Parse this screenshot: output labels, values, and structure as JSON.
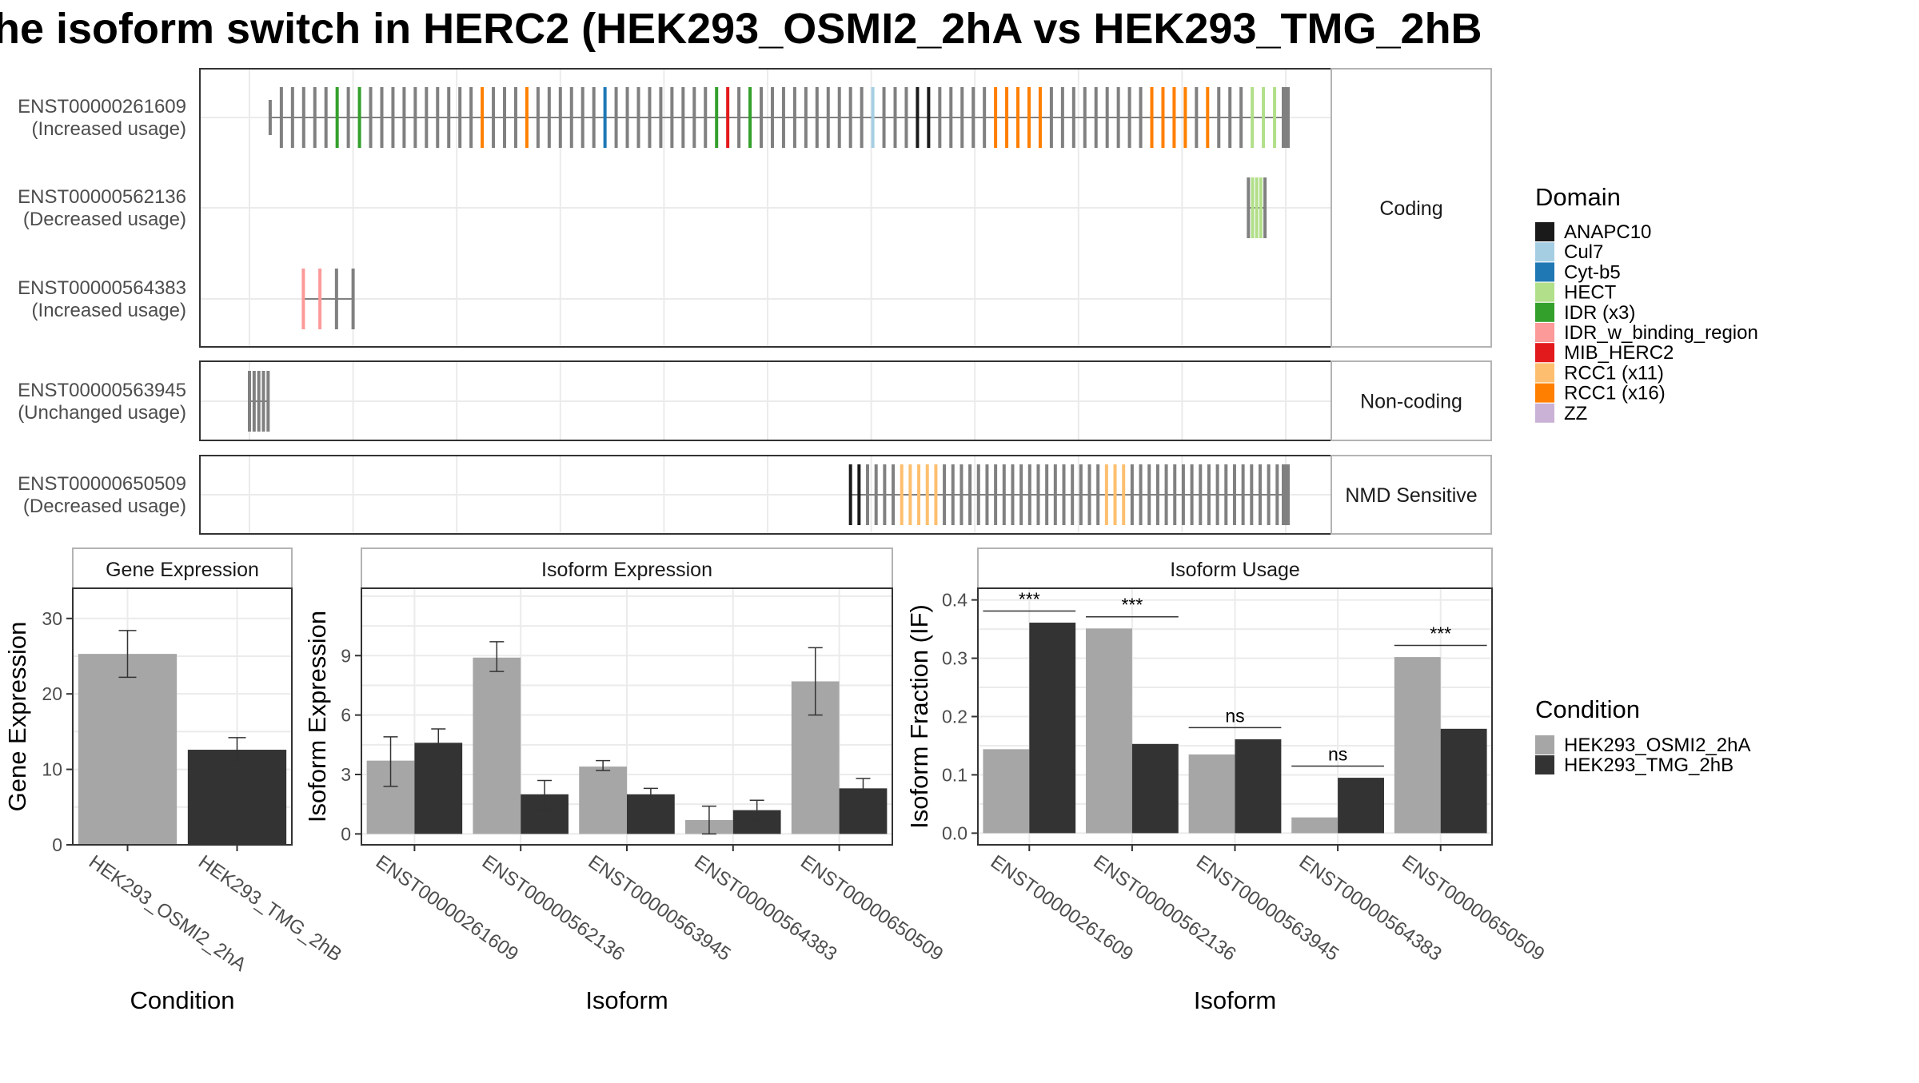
{
  "title": "he isoform switch in HERC2 (HEK293_OSMI2_2hA vs HEK293_TMG_2hB",
  "colors": {
    "exon": "#808080",
    "cond_a": "#a6a6a6",
    "cond_b": "#333333",
    "grid": "#ebebeb",
    "panel_border": "#333333",
    "strip_border": "#b3b3b3"
  },
  "transcript_panels": [
    {
      "category": "Coding",
      "tracks": [
        {
          "id": "ENST00000261609",
          "usage": "(Increased usage)",
          "exon_start": 2,
          "exon_end": 100,
          "thick_start": 4,
          "exon_count": 92,
          "domain_exons": [
            [
              6,
              "IDR (x3)"
            ],
            [
              8,
              "IDR (x3)"
            ],
            [
              19,
              "RCC1 (x16)"
            ],
            [
              23,
              "RCC1 (x16)"
            ],
            [
              30,
              "Cyt-b5"
            ],
            [
              40,
              "IDR (x3)"
            ],
            [
              41,
              "MIB_HERC2"
            ],
            [
              43,
              "IDR (x3)"
            ],
            [
              54,
              "Cul7"
            ],
            [
              58,
              "ANAPC10"
            ],
            [
              59,
              "ANAPC10"
            ],
            [
              65,
              "RCC1 (x16)"
            ],
            [
              66,
              "RCC1 (x16)"
            ],
            [
              67,
              "RCC1 (x16)"
            ],
            [
              68,
              "RCC1 (x16)"
            ],
            [
              69,
              "RCC1 (x16)"
            ],
            [
              79,
              "RCC1 (x16)"
            ],
            [
              80,
              "RCC1 (x16)"
            ],
            [
              81,
              "RCC1 (x16)"
            ],
            [
              82,
              "RCC1 (x16)"
            ],
            [
              84,
              "RCC1 (x16)"
            ],
            [
              88,
              "HECT"
            ],
            [
              89,
              "HECT"
            ],
            [
              90,
              "HECT"
            ]
          ]
        },
        {
          "id": "ENST00000562136",
          "usage": "(Decreased usage)",
          "exon_start": 96.4,
          "exon_end": 98,
          "thick_start": 96.4,
          "exon_count": 5,
          "domain_exons": [
            [
              1,
              "HECT"
            ],
            [
              2,
              "HECT"
            ],
            [
              3,
              "HECT"
            ]
          ]
        },
        {
          "id": "ENST00000564383",
          "usage": "(Increased usage)",
          "exon_start": 5.2,
          "exon_end": 10,
          "thick_start": 5.2,
          "exon_count": 4,
          "domain_exons": [
            [
              0,
              "IDR_w_binding_region"
            ],
            [
              1,
              "IDR_w_binding_region"
            ]
          ]
        }
      ]
    },
    {
      "category": "Non-coding",
      "tracks": [
        {
          "id": "ENST00000563945",
          "usage": "(Unchanged usage)",
          "exon_start": 0,
          "exon_end": 1.8,
          "thick_start": 0,
          "exon_count": 5,
          "domain_exons": []
        }
      ]
    },
    {
      "category": "NMD Sensitive",
      "tracks": [
        {
          "id": "ENST00000650509",
          "usage": "(Decreased usage)",
          "exon_start": 58,
          "exon_end": 100,
          "thick_start": 58,
          "exon_count": 52,
          "domain_exons": [
            [
              0,
              "ANAPC10"
            ],
            [
              1,
              "ANAPC10"
            ],
            [
              6,
              "RCC1 (x11)"
            ],
            [
              7,
              "RCC1 (x11)"
            ],
            [
              8,
              "RCC1 (x11)"
            ],
            [
              9,
              "RCC1 (x11)"
            ],
            [
              10,
              "RCC1 (x11)"
            ],
            [
              30,
              "RCC1 (x11)"
            ],
            [
              31,
              "RCC1 (x11)"
            ],
            [
              32,
              "RCC1 (x11)"
            ]
          ]
        }
      ]
    }
  ],
  "domain_legend": {
    "title": "Domain",
    "items": [
      {
        "name": "ANAPC10",
        "color": "#1a1a1a"
      },
      {
        "name": "Cul7",
        "color": "#a6cee3"
      },
      {
        "name": "Cyt-b5",
        "color": "#1f78b4"
      },
      {
        "name": "HECT",
        "color": "#b2df8a"
      },
      {
        "name": "IDR (x3)",
        "color": "#33a02c"
      },
      {
        "name": "IDR_w_binding_region",
        "color": "#fb9a99"
      },
      {
        "name": "MIB_HERC2",
        "color": "#e31a1c"
      },
      {
        "name": "RCC1 (x11)",
        "color": "#fdbf6f"
      },
      {
        "name": "RCC1 (x16)",
        "color": "#ff7f00"
      },
      {
        "name": "ZZ",
        "color": "#cab2d6"
      }
    ]
  },
  "condition_legend": {
    "title": "Condition",
    "items": [
      {
        "name": "HEK293_OSMI2_2hA",
        "color": "#a6a6a6"
      },
      {
        "name": "HEK293_TMG_2hB",
        "color": "#333333"
      }
    ]
  },
  "chart_data": [
    {
      "type": "bar",
      "title": "Gene Expression",
      "xlabel": "Condition",
      "ylabel": "Gene Expression",
      "categories": [
        "HEK293_OSMI2_2hA",
        "HEK293_TMG_2hB"
      ],
      "values": [
        25.3,
        12.6
      ],
      "error": [
        [
          22.2,
          28.4
        ],
        [
          11.0,
          14.2
        ]
      ],
      "ylim": [
        0,
        34
      ],
      "yticks": [
        0,
        10,
        20,
        30
      ]
    },
    {
      "type": "bar",
      "title": "Isoform Expression",
      "xlabel": "Isoform",
      "ylabel": "Isoform Expression",
      "categories": [
        "ENST00000261609",
        "ENST00000562136",
        "ENST00000563945",
        "ENST00000564383",
        "ENST00000650509"
      ],
      "series": [
        {
          "name": "HEK293_OSMI2_2hA",
          "values": [
            3.7,
            8.9,
            3.4,
            0.7,
            7.7
          ],
          "error": [
            [
              2.4,
              4.9
            ],
            [
              8.2,
              9.7
            ],
            [
              3.2,
              3.7
            ],
            [
              0.0,
              1.4
            ],
            [
              6.0,
              9.4
            ]
          ]
        },
        {
          "name": "HEK293_TMG_2hB",
          "values": [
            4.6,
            2.0,
            2.0,
            1.2,
            2.3
          ],
          "error": [
            [
              3.9,
              5.3
            ],
            [
              1.2,
              2.7
            ],
            [
              1.7,
              2.3
            ],
            [
              0.7,
              1.7
            ],
            [
              1.8,
              2.8
            ]
          ]
        }
      ],
      "ylim": [
        -0.55,
        12.4
      ],
      "yticks": [
        0,
        3,
        6,
        9
      ]
    },
    {
      "type": "bar",
      "title": "Isoform Usage",
      "xlabel": "Isoform",
      "ylabel": "Isoform Fraction (IF)",
      "categories": [
        "ENST00000261609",
        "ENST00000562136",
        "ENST00000563945",
        "ENST00000564383",
        "ENST00000650509"
      ],
      "series": [
        {
          "name": "HEK293_OSMI2_2hA",
          "values": [
            0.144,
            0.351,
            0.135,
            0.027,
            0.302
          ]
        },
        {
          "name": "HEK293_TMG_2hB",
          "values": [
            0.361,
            0.153,
            0.161,
            0.095,
            0.179
          ]
        }
      ],
      "significance": [
        {
          "label": "***",
          "y": 0.381
        },
        {
          "label": "***",
          "y": 0.371
        },
        {
          "label": "ns",
          "y": 0.181
        },
        {
          "label": "ns",
          "y": 0.115
        },
        {
          "label": "***",
          "y": 0.322
        }
      ],
      "ylim": [
        -0.02,
        0.42
      ],
      "yticks": [
        0.0,
        0.1,
        0.2,
        0.3,
        0.4
      ]
    }
  ]
}
